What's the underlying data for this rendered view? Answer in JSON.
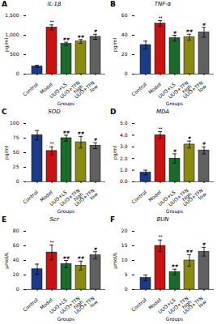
{
  "chart_data": [
    {
      "type": "bar",
      "panel_label": "A",
      "title": "IL-1β",
      "ylabel": "pg/ml",
      "xlabel": "Groups",
      "categories": [
        "Control",
        "Model",
        "UUO+LS",
        "UUO+TFN\nhigh",
        "UUO+TFN\nlow"
      ],
      "values": [
        200,
        1200,
        780,
        840,
        960
      ],
      "errors": [
        30,
        65,
        40,
        50,
        65
      ],
      "annotations": [
        null,
        "**",
        "##",
        "##",
        "#"
      ],
      "colors": [
        "#1a3a8a",
        "#cc1111",
        "#1a6b2a",
        "#8a8a10",
        "#606060"
      ],
      "ylim": [
        0,
        1500
      ],
      "yticks": [
        0,
        500,
        1000,
        1500
      ]
    },
    {
      "type": "bar",
      "panel_label": "B",
      "title": "TNF-α",
      "ylabel": "pg/ml",
      "xlabel": "Groups",
      "categories": [
        "Control",
        "Model",
        "UUO+LS",
        "UUO+TFN\nhigh",
        "UUO+TFN\nlow"
      ],
      "values": [
        30,
        52,
        37,
        38,
        43
      ],
      "errors": [
        4,
        3,
        3,
        3,
        5
      ],
      "annotations": [
        null,
        "**",
        "#",
        "##",
        "#"
      ],
      "colors": [
        "#1a3a8a",
        "#cc1111",
        "#1a6b2a",
        "#8a8a10",
        "#606060"
      ],
      "ylim": [
        0,
        60
      ],
      "yticks": [
        0,
        20,
        40,
        60
      ]
    },
    {
      "type": "bar",
      "panel_label": "C",
      "title": "SOD",
      "ylabel": "pg/ml",
      "xlabel": "Groups",
      "categories": [
        "Control",
        "Model",
        "UUO+LS",
        "UUO+TFN\nhigh",
        "UUO+TFN\nlow"
      ],
      "values": [
        80,
        53,
        75,
        68,
        62
      ],
      "errors": [
        8,
        7,
        5,
        10,
        5
      ],
      "annotations": [
        null,
        "**",
        "##",
        "##",
        "#"
      ],
      "colors": [
        "#1a3a8a",
        "#cc1111",
        "#1a6b2a",
        "#8a8a10",
        "#606060"
      ],
      "ylim": [
        0,
        100
      ],
      "yticks": [
        0,
        25,
        50,
        75,
        100
      ]
    },
    {
      "type": "bar",
      "panel_label": "D",
      "title": "MDA",
      "ylabel": "pg/ml",
      "xlabel": "Groups",
      "categories": [
        "Control",
        "Model",
        "UUO+LS",
        "UUO+TFN\nhigh",
        "UUO+TFN\nlow"
      ],
      "values": [
        0.8,
        4.0,
        2.0,
        3.2,
        2.7
      ],
      "errors": [
        0.2,
        0.3,
        0.4,
        0.3,
        0.3
      ],
      "annotations": [
        null,
        "**",
        "#",
        "#",
        "#"
      ],
      "colors": [
        "#1a3a8a",
        "#cc1111",
        "#1a6b2a",
        "#8a8a10",
        "#606060"
      ],
      "ylim": [
        0,
        5
      ],
      "yticks": [
        0,
        1,
        2,
        3,
        4,
        5
      ]
    },
    {
      "type": "bar",
      "panel_label": "E",
      "title": "Scr",
      "ylabel": "μmol/L",
      "xlabel": "Groups",
      "categories": [
        "Control",
        "Model",
        "UUO+LS",
        "UUO+TFN\nhigh",
        "UUO+TFN\nlow"
      ],
      "values": [
        28,
        51,
        35,
        33,
        47
      ],
      "errors": [
        7,
        10,
        5,
        6,
        5
      ],
      "annotations": [
        null,
        "**",
        "##",
        "##",
        "#"
      ],
      "colors": [
        "#1a3a8a",
        "#cc1111",
        "#1a6b2a",
        "#8a8a10",
        "#606060"
      ],
      "ylim": [
        0,
        80
      ],
      "yticks": [
        0,
        20,
        40,
        60,
        80
      ]
    },
    {
      "type": "bar",
      "panel_label": "F",
      "title": "BUN",
      "ylabel": "μmol/L",
      "xlabel": "Groups",
      "categories": [
        "Control",
        "Model",
        "UUO+LS",
        "UUO+TFN\nhigh",
        "UUO+TFN\nlow"
      ],
      "values": [
        4,
        15,
        6,
        10,
        13
      ],
      "errors": [
        1,
        2,
        1,
        2,
        1.5
      ],
      "annotations": [
        null,
        "**",
        "##",
        "##",
        "#"
      ],
      "colors": [
        "#1a3a8a",
        "#cc1111",
        "#1a6b2a",
        "#8a8a10",
        "#606060"
      ],
      "ylim": [
        0,
        20
      ],
      "yticks": [
        0,
        5,
        10,
        15,
        20
      ]
    }
  ]
}
